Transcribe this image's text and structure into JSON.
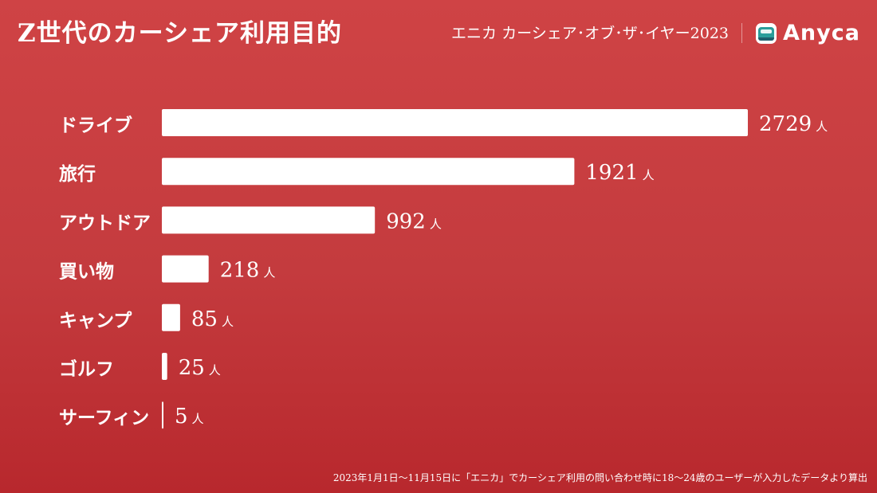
{
  "header": {
    "title": "Z世代のカーシェア利用目的",
    "award": "エニカ カーシェア･オブ･ザ･イヤー2023",
    "logo_text": "Anyca",
    "logo_icon": "car-icon"
  },
  "chart_data": {
    "type": "bar",
    "orientation": "horizontal",
    "title": "Z世代のカーシェア利用目的",
    "categories": [
      "ドライブ",
      "旅行",
      "アウトドア",
      "買い物",
      "キャンプ",
      "ゴルフ",
      "サーフィン"
    ],
    "values": [
      2729,
      1921,
      992,
      218,
      85,
      25,
      5
    ],
    "unit": "人",
    "xlim": [
      0,
      2729
    ],
    "grid": false,
    "bar_color": "#ffffff",
    "background_color": "#c93f42"
  },
  "footnote": "2023年1月1日〜11月15日に「エニカ」でカーシェア利用の問い合わせ時に18〜24歳のユーザーが入力したデータより算出"
}
